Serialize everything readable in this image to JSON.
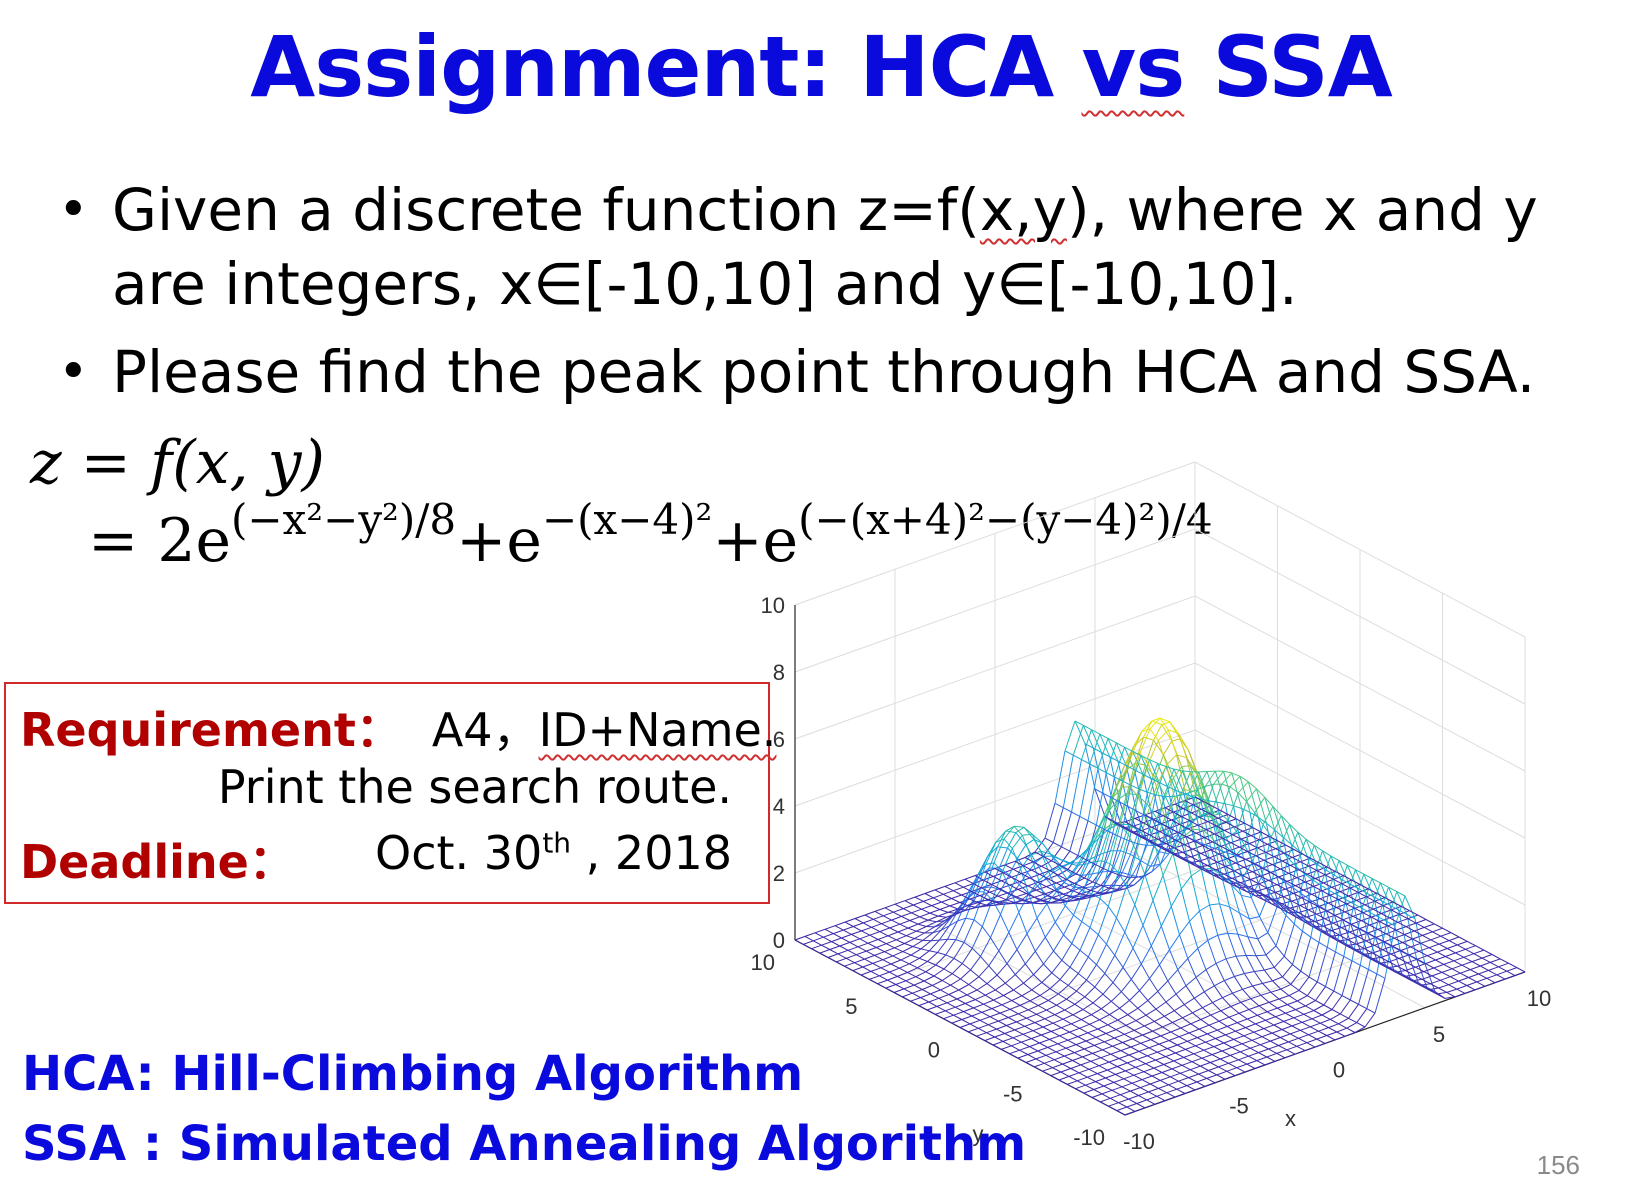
{
  "title": {
    "prefix": "Assignment: HCA ",
    "underlined": "vs",
    "suffix": " SSA"
  },
  "bullets": [
    {
      "line1_a": "Given a discrete function z=f(",
      "line1_u": "x,y",
      "line1_b": "), where x and y",
      "line2": "are integers, x∈[-10,10] and y∈[-10,10]."
    },
    {
      "line1": "Please find the peak point through HCA and SSA."
    }
  ],
  "formula": {
    "lhs": "z = f(x, y)",
    "eq": "= 2e",
    "exp1": "(−x²−y²)/8",
    "plus1": "+e",
    "exp2": "−(x−4)²",
    "plus2": "+e",
    "exp3": "(−(x+4)²−(y−4)²)/4"
  },
  "requirement": {
    "label": "Requirement：",
    "value_a": "A4，",
    "value_u": "ID+Name.",
    "line2": "Print the search route.",
    "deadline_label": "Deadline：",
    "deadline_value": "Oct. 30",
    "deadline_sup": "th",
    "deadline_year": " , 2018"
  },
  "definitions": {
    "hca": "HCA: Hill-Climbing Algorithm",
    "ssa": "SSA : Simulated Annealing Algorithm"
  },
  "page_number": "156",
  "surface_plot": {
    "z_ticks": [
      "0",
      "2",
      "4",
      "6",
      "8",
      "10"
    ],
    "y_ticks": [
      "10",
      "5",
      "0",
      "-5",
      "-10"
    ],
    "x_ticks": [
      "-10",
      "-5",
      "0",
      "5",
      "10"
    ],
    "x_label": "x",
    "y_label": "y",
    "colormap": [
      "#3e26a8",
      "#2b7bf5",
      "#12b2cf",
      "#53cb7a",
      "#c8c32a",
      "#f9fb0e"
    ]
  }
}
